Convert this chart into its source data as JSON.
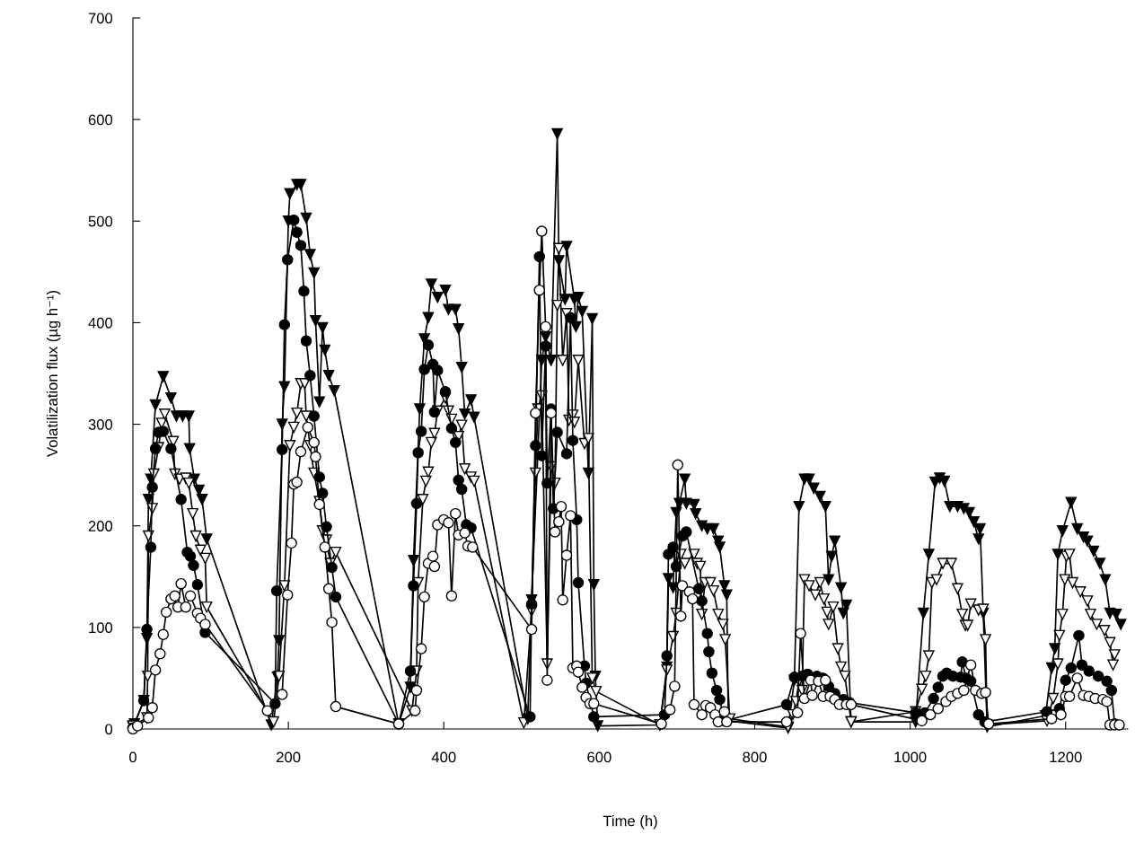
{
  "chart_data": {
    "type": "line",
    "xlabel": "Time (h)",
    "ylabel": "Volatilization flux (µg h⁻¹)",
    "xlim": [
      0,
      1280
    ],
    "ylim": [
      0,
      700
    ],
    "xticks": [
      0,
      200,
      400,
      600,
      800,
      1000,
      1200
    ],
    "yticks": [
      0,
      100,
      200,
      300,
      400,
      500,
      600,
      700
    ],
    "grid": false,
    "legend": false,
    "line_style": "solid",
    "series": [
      {
        "color": "#000000",
        "marker": "triangle",
        "x": [
          0,
          2,
          14,
          18,
          20,
          23,
          29,
          39,
          49,
          56,
          64,
          72,
          73,
          79,
          85,
          89,
          95,
          178,
          186,
          188,
          192,
          195,
          200,
          202,
          211,
          216,
          223,
          228,
          233,
          235,
          240,
          244,
          247,
          252,
          259,
          342,
          357,
          361,
          369,
          375,
          380,
          384,
          392,
          402,
          406,
          415,
          419,
          423,
          427,
          435,
          439,
          508,
          513,
          526,
          531,
          538,
          546,
          548,
          556,
          558,
          568,
          570,
          573,
          578,
          586,
          591,
          593,
          595,
          598,
          678,
          687,
          689,
          695,
          699,
          703,
          710,
          712,
          722,
          724,
          732,
          739,
          747,
          753,
          755,
          761,
          764,
          766,
          843,
          851,
          857,
          864,
          870,
          876,
          884,
          891,
          895,
          899,
          903,
          911,
          914,
          918,
          924,
          1007,
          1017,
          1024,
          1032,
          1038,
          1044,
          1051,
          1061,
          1069,
          1076,
          1082,
          1088,
          1090,
          1094,
          1099,
          1174,
          1182,
          1186,
          1190,
          1196,
          1207,
          1215,
          1223,
          1228,
          1236,
          1244,
          1251,
          1257,
          1265,
          1271
        ],
        "values": [
          2,
          5,
          28,
          89,
          226,
          246,
          319,
          347,
          326,
          308,
          308,
          308,
          276,
          246,
          235,
          226,
          187,
          4,
          51,
          87,
          300,
          337,
          500,
          527,
          536,
          536,
          503,
          467,
          449,
          402,
          322,
          395,
          373,
          348,
          333,
          5,
          41,
          166,
          315,
          384,
          405,
          438,
          425,
          432,
          413,
          413,
          394,
          356,
          310,
          324,
          307,
          10,
          127,
          363,
          386,
          363,
          586,
          461,
          423,
          475,
          423,
          396,
          425,
          411,
          252,
          404,
          142,
          52,
          3,
          4,
          61,
          148,
          139,
          213,
          222,
          246,
          222,
          221,
          212,
          200,
          197,
          197,
          185,
          179,
          141,
          132,
          8,
          1,
          48,
          219,
          246,
          246,
          237,
          229,
          219,
          147,
          170,
          185,
          139,
          114,
          122,
          7,
          7,
          114,
          172,
          243,
          247,
          244,
          219,
          219,
          217,
          213,
          204,
          187,
          197,
          114,
          2,
          13,
          60,
          79,
          172,
          195,
          223,
          197,
          189,
          185,
          175,
          163,
          147,
          114,
          113,
          103
        ]
      },
      {
        "color": "#ffffff",
        "marker": "triangle",
        "x": [
          0,
          18,
          19,
          20,
          25,
          27,
          33,
          37,
          41,
          52,
          54,
          60,
          68,
          72,
          77,
          81,
          87,
          93,
          95,
          181,
          188,
          195,
          202,
          207,
          211,
          216,
          221,
          223,
          228,
          233,
          240,
          244,
          249,
          254,
          261,
          359,
          365,
          367,
          373,
          377,
          380,
          384,
          388,
          392,
          402,
          406,
          410,
          419,
          423,
          427,
          435,
          439,
          503,
          513,
          518,
          521,
          526,
          533,
          538,
          543,
          546,
          548,
          553,
          558,
          561,
          566,
          568,
          573,
          581,
          586,
          591,
          596,
          678,
          687,
          695,
          699,
          705,
          710,
          722,
          726,
          730,
          732,
          736,
          743,
          747,
          753,
          759,
          762,
          768,
          843,
          849,
          853,
          857,
          861,
          864,
          870,
          878,
          884,
          889,
          893,
          895,
          901,
          907,
          911,
          916,
          924,
          1007,
          1015,
          1020,
          1024,
          1028,
          1034,
          1042,
          1053,
          1061,
          1067,
          1071,
          1074,
          1078,
          1088,
          1094,
          1097,
          1099,
          1176,
          1184,
          1190,
          1192,
          1196,
          1199,
          1201,
          1205,
          1209,
          1219,
          1228,
          1232,
          1240,
          1250,
          1257,
          1261,
          1263
        ],
        "values": [
          3,
          11,
          52,
          190,
          217,
          251,
          277,
          301,
          310,
          283,
          251,
          246,
          247,
          242,
          212,
          190,
          176,
          168,
          120,
          7,
          52,
          141,
          279,
          297,
          311,
          340,
          340,
          308,
          279,
          252,
          224,
          195,
          186,
          163,
          174,
          18,
          57,
          144,
          226,
          244,
          253,
          282,
          291,
          313,
          326,
          313,
          305,
          288,
          299,
          256,
          248,
          244,
          6,
          116,
          252,
          315,
          328,
          64,
          258,
          242,
          417,
          473,
          363,
          409,
          304,
          309,
          302,
          363,
          281,
          286,
          50,
          37,
          4,
          58,
          91,
          114,
          172,
          163,
          172,
          163,
          160,
          113,
          144,
          144,
          136,
          113,
          103,
          88,
          10,
          2,
          14,
          27,
          47,
          38,
          147,
          141,
          132,
          144,
          128,
          115,
          103,
          120,
          79,
          61,
          52,
          7,
          17,
          39,
          52,
          72,
          144,
          147,
          163,
          163,
          138,
          113,
          102,
          102,
          123,
          117,
          118,
          88,
          4,
          8,
          30,
          64,
          92,
          113,
          147,
          170,
          172,
          144,
          135,
          126,
          113,
          103,
          97,
          85,
          63,
          73
        ]
      },
      {
        "color": "#000000",
        "marker": "circle",
        "x": [
          0,
          14,
          18,
          23,
          25,
          29,
          33,
          39,
          49,
          62,
          70,
          74,
          78,
          83,
          93,
          183,
          185,
          192,
          195,
          199,
          207,
          211,
          216,
          220,
          223,
          228,
          233,
          240,
          244,
          249,
          256,
          261,
          342,
          357,
          361,
          365,
          367,
          371,
          375,
          380,
          386,
          388,
          392,
          402,
          410,
          415,
          419,
          423,
          429,
          435,
          511,
          513,
          518,
          523,
          526,
          531,
          533,
          538,
          541,
          546,
          558,
          563,
          566,
          571,
          573,
          581,
          583,
          593,
          684,
          687,
          689,
          695,
          699,
          707,
          712,
          728,
          732,
          739,
          741,
          745,
          751,
          755,
          761,
          841,
          851,
          861,
          868,
          880,
          888,
          895,
          903,
          914,
          922,
          1007,
          1019,
          1030,
          1036,
          1042,
          1047,
          1055,
          1065,
          1067,
          1072,
          1078,
          1088,
          1096,
          1176,
          1192,
          1200,
          1207,
          1217,
          1221,
          1230,
          1242,
          1253,
          1259,
          1263
        ],
        "values": [
          1,
          28,
          98,
          179,
          238,
          276,
          292,
          293,
          276,
          226,
          174,
          170,
          161,
          142,
          95,
          25,
          136,
          275,
          398,
          462,
          501,
          489,
          476,
          431,
          382,
          348,
          308,
          248,
          232,
          199,
          159,
          130,
          5,
          57,
          141,
          222,
          272,
          293,
          354,
          378,
          359,
          312,
          353,
          332,
          296,
          282,
          245,
          236,
          201,
          198,
          12,
          123,
          279,
          465,
          269,
          377,
          242,
          315,
          217,
          292,
          271,
          405,
          284,
          206,
          144,
          62,
          45,
          12,
          14,
          72,
          172,
          179,
          160,
          190,
          194,
          138,
          126,
          94,
          76,
          55,
          38,
          29,
          8,
          24,
          51,
          52,
          54,
          52,
          50,
          42,
          35,
          29,
          26,
          16,
          16,
          30,
          41,
          52,
          55,
          52,
          51,
          66,
          50,
          47,
          14,
          7,
          17,
          20,
          48,
          60,
          92,
          63,
          57,
          52,
          47,
          38,
          5
        ]
      },
      {
        "color": "#ffffff",
        "marker": "circle",
        "x": [
          0,
          6,
          20,
          25,
          29,
          35,
          39,
          43,
          49,
          54,
          58,
          62,
          68,
          74,
          83,
          87,
          93,
          173,
          192,
          199,
          204,
          207,
          211,
          216,
          225,
          233,
          235,
          240,
          247,
          252,
          256,
          261,
          342,
          363,
          365,
          371,
          375,
          380,
          386,
          388,
          392,
          400,
          406,
          410,
          415,
          419,
          427,
          431,
          437,
          513,
          518,
          523,
          526,
          531,
          533,
          538,
          543,
          548,
          551,
          553,
          558,
          563,
          566,
          571,
          573,
          578,
          583,
          588,
          593,
          680,
          691,
          697,
          701,
          705,
          707,
          716,
          720,
          722,
          732,
          737,
          743,
          749,
          753,
          761,
          764,
          841,
          855,
          859,
          864,
          872,
          874,
          882,
          888,
          891,
          897,
          903,
          909,
          918,
          924,
          1015,
          1026,
          1036,
          1046,
          1053,
          1061,
          1069,
          1078,
          1084,
          1092,
          1097,
          1101,
          1182,
          1194,
          1200,
          1205,
          1215,
          1223,
          1230,
          1238,
          1248,
          1253,
          1257,
          1263,
          1269
        ],
        "values": [
          0,
          3,
          11,
          21,
          58,
          74,
          93,
          115,
          128,
          131,
          120,
          143,
          120,
          131,
          114,
          109,
          103,
          18,
          34,
          132,
          183,
          241,
          243,
          273,
          297,
          282,
          268,
          221,
          179,
          138,
          105,
          22,
          5,
          18,
          38,
          79,
          130,
          163,
          170,
          160,
          201,
          206,
          203,
          131,
          212,
          191,
          193,
          180,
          179,
          98,
          311,
          432,
          490,
          396,
          48,
          311,
          194,
          204,
          219,
          127,
          171,
          210,
          60,
          62,
          56,
          41,
          31,
          25,
          25,
          5,
          19,
          42,
          260,
          111,
          141,
          135,
          128,
          24,
          14,
          23,
          21,
          14,
          7,
          17,
          7,
          7,
          16,
          94,
          30,
          48,
          33,
          47,
          32,
          48,
          32,
          29,
          24,
          24,
          24,
          8,
          14,
          20,
          27,
          32,
          35,
          38,
          63,
          38,
          35,
          36,
          5,
          10,
          14,
          32,
          32,
          50,
          33,
          32,
          30,
          29,
          27,
          4,
          4,
          4
        ]
      }
    ]
  }
}
